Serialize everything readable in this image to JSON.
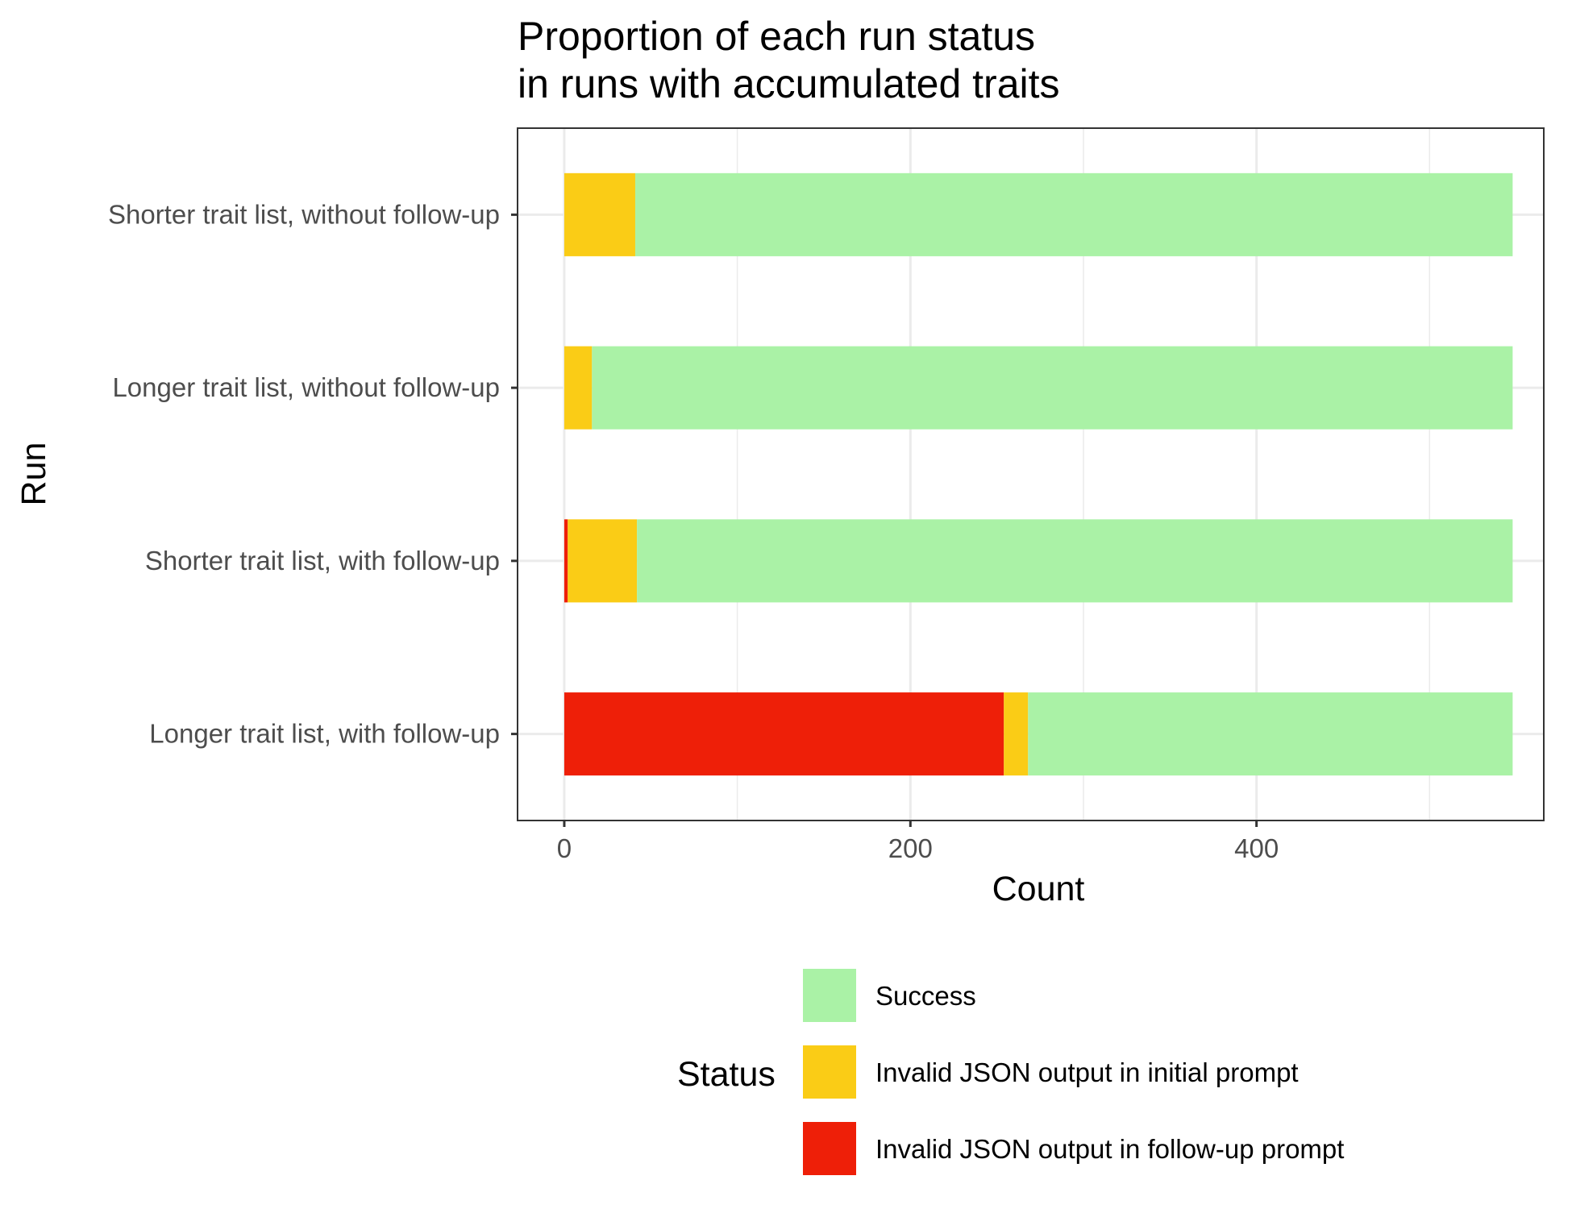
{
  "chart_data": {
    "type": "bar",
    "orientation": "horizontal",
    "stacked": true,
    "title": [
      "Proportion of each run status",
      "in runs with accumulated traits"
    ],
    "xlabel": "Count",
    "ylabel": "Run",
    "xlim": [
      -27,
      566
    ],
    "x_ticks": [
      0,
      200,
      400
    ],
    "grid": true,
    "categories": [
      "Shorter trait list, without follow-up",
      "Longer trait list, without follow-up",
      "Shorter trait list, with follow-up",
      "Longer trait list, with follow-up"
    ],
    "series": [
      {
        "name": "Invalid JSON output in follow-up prompt",
        "color": "#ee1f08",
        "values": [
          0,
          0,
          2,
          254
        ]
      },
      {
        "name": "Invalid JSON output in initial prompt",
        "color": "#facc16",
        "values": [
          41,
          16,
          40,
          14
        ]
      },
      {
        "name": "Success",
        "color": "#aaf2a6",
        "values": [
          507,
          532,
          506,
          280
        ]
      }
    ],
    "legend": {
      "title": "Status",
      "position": "bottom",
      "entries": [
        "Success",
        "Invalid JSON output in initial prompt",
        "Invalid JSON output in follow-up prompt"
      ]
    }
  }
}
